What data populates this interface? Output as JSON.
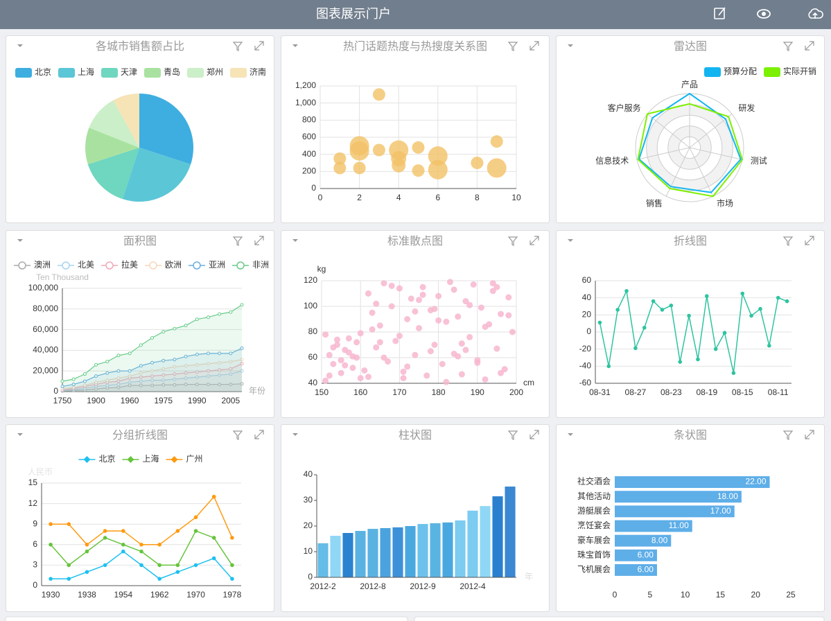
{
  "header": {
    "title": "图表展示门户"
  },
  "chart_data": [
    {
      "type": "pie",
      "title": "各城市销售额占比",
      "legend": "top",
      "categories": [
        "北京",
        "上海",
        "天津",
        "青岛",
        "郑州",
        "济南"
      ],
      "values": [
        30,
        25,
        15,
        11,
        11,
        8
      ],
      "colors": [
        "#3eaee0",
        "#5bc6d6",
        "#6fd6bf",
        "#a9e2a0",
        "#cbefc8",
        "#f6e3b6"
      ]
    },
    {
      "type": "bubble",
      "title": "热门话题热度与热搜度关系图",
      "color": "#f2c266",
      "grid": true,
      "x": [
        1,
        1,
        2,
        2,
        2,
        3,
        3,
        4,
        4,
        4,
        5,
        5,
        6,
        6,
        8,
        9,
        9
      ],
      "values": [
        350,
        240,
        240,
        440,
        500,
        1100,
        450,
        450,
        350,
        270,
        480,
        210,
        380,
        220,
        300,
        550,
        240
      ],
      "sizes": [
        9,
        9,
        9,
        14,
        14,
        9,
        9,
        14,
        11,
        10,
        9,
        9,
        14,
        14,
        9,
        9,
        14
      ],
      "xlim": [
        0,
        10
      ],
      "xticks": [
        0,
        2,
        4,
        6,
        8,
        10
      ],
      "ylim": [
        0,
        1200
      ],
      "yticks": [
        0,
        200,
        400,
        600,
        800,
        {
          "value": 1000,
          "label": "1,000"
        },
        {
          "value": 1200,
          "label": "1,200"
        }
      ]
    },
    {
      "type": "radar",
      "title": "雷达图",
      "legend": "top-right",
      "indicators": [
        "产品",
        "研发",
        "测试",
        "市场",
        "销售",
        "信息技术",
        "客户服务"
      ],
      "rlim": [
        0,
        100
      ],
      "series": [
        {
          "name": "预算分配",
          "color": "#13b5f0",
          "values": [
            100,
            85,
            97,
            92,
            80,
            96,
            88
          ]
        },
        {
          "name": "实际开销",
          "color": "#7cf000",
          "values": [
            81,
            92,
            100,
            100,
            84,
            98,
            100
          ]
        }
      ]
    },
    {
      "type": "area",
      "title": "面积图",
      "legend": "top-left",
      "ylabel": "Ten Thousand",
      "xlabel": "年份",
      "grid": true,
      "categories": [
        "1750",
        null,
        null,
        "1900",
        null,
        null,
        "1960",
        null,
        null,
        "1975",
        null,
        null,
        "1990",
        null,
        null,
        "2005",
        null
      ],
      "series": [
        {
          "name": "澳洲",
          "color": "#aaaaaa",
          "values": [
            500,
            1000,
            1500,
            2500,
            3500,
            4000,
            6000,
            6000,
            6000,
            6500,
            6500,
            7000,
            7000,
            7000,
            7000,
            7000,
            7500
          ]
        },
        {
          "name": "北美",
          "color": "#a6d4f2",
          "values": [
            1000,
            2000,
            3000,
            5000,
            6000,
            7000,
            9000,
            10000,
            11000,
            11000,
            12000,
            13000,
            14000,
            15000,
            16000,
            17000,
            20000
          ]
        },
        {
          "name": "拉美",
          "color": "#f4a6b8",
          "values": [
            1500,
            3000,
            5000,
            7000,
            9000,
            10000,
            13000,
            14000,
            15000,
            16000,
            17000,
            18000,
            19000,
            20000,
            21000,
            22000,
            27000
          ]
        },
        {
          "name": "欧洲",
          "color": "#f7d6bc",
          "values": [
            3000,
            4000,
            6000,
            9000,
            11000,
            13000,
            15000,
            18000,
            20000,
            22000,
            24000,
            25000,
            26000,
            27000,
            28000,
            29000,
            31000
          ]
        },
        {
          "name": "亚洲",
          "color": "#6aaee0",
          "values": [
            5000,
            7000,
            10000,
            15000,
            18000,
            20000,
            20000,
            25000,
            28000,
            30000,
            31000,
            34000,
            36000,
            37000,
            37000,
            37000,
            42000
          ]
        },
        {
          "name": "非洲",
          "color": "#66cc88",
          "values": [
            10000,
            12000,
            17000,
            26000,
            29000,
            35000,
            37000,
            45000,
            52000,
            58000,
            61000,
            64000,
            70000,
            72000,
            75000,
            77000,
            84000
          ]
        }
      ],
      "ylim": [
        0,
        100000
      ],
      "yticks": [
        0,
        {
          "value": 20000,
          "label": "20,000"
        },
        {
          "value": 40000,
          "label": "40,000"
        },
        {
          "value": 60000,
          "label": "60,000"
        },
        {
          "value": 80000,
          "label": "80,000"
        },
        {
          "value": 100000,
          "label": "100,000"
        }
      ]
    },
    {
      "type": "scatter",
      "title": "标准散点图",
      "color": "#f7b6cf",
      "xlabel": "cm",
      "ylabel": "kg",
      "grid": true,
      "x": [
        151,
        152,
        153,
        154,
        155,
        156,
        157,
        158,
        159,
        160,
        151,
        153,
        155,
        157,
        159,
        161,
        152,
        154,
        156,
        158,
        160,
        162,
        163,
        164,
        165,
        166,
        167,
        168,
        169,
        170,
        171,
        172,
        173,
        174,
        175,
        176,
        177,
        178,
        179,
        180,
        181,
        182,
        183,
        184,
        185,
        186,
        187,
        188,
        189,
        190,
        191,
        192,
        193,
        194,
        195,
        196,
        197,
        198,
        199,
        162,
        164,
        166,
        168,
        170,
        172,
        174,
        176,
        178,
        180,
        182,
        184,
        186,
        188,
        190,
        192,
        194,
        196,
        198,
        165,
        175,
        185,
        195,
        163,
        171,
        179,
        187
      ],
      "values": [
        78,
        62,
        55,
        70,
        48,
        66,
        75,
        52,
        60,
        44,
        42,
        68,
        58,
        64,
        72,
        50,
        46,
        74,
        54,
        61,
        79,
        110,
        95,
        68,
        85,
        118,
        57,
        100,
        73,
        114,
        49,
        90,
        106,
        62,
        83,
        115,
        46,
        97,
        70,
        108,
        55,
        88,
        119,
        63,
        92,
        47,
        104,
        76,
        117,
        58,
        99,
        43,
        86,
        112,
        67,
        94,
        51,
        107,
        80,
        45,
        102,
        60,
        116,
        77,
        53,
        96,
        109,
        65,
        89,
        41,
        113,
        71,
        101,
        56,
        84,
        118,
        48,
        93,
        72,
        105,
        61,
        115,
        82,
        44,
        98,
        66
      ],
      "xlim": [
        150,
        200
      ],
      "xticks": [
        150,
        160,
        170,
        180,
        190,
        200
      ],
      "ylim": [
        40,
        120
      ],
      "yticks": [
        40,
        60,
        80,
        100,
        120
      ]
    },
    {
      "type": "line",
      "title": "折线图",
      "color": "#2ec4a0",
      "grid": true,
      "categories": [
        "08-31",
        null,
        null,
        null,
        "08-27",
        null,
        null,
        null,
        "08-23",
        null,
        null,
        null,
        "08-19",
        null,
        null,
        null,
        "08-15",
        null,
        null,
        null,
        "08-11",
        null
      ],
      "values": [
        11,
        -40,
        26,
        48,
        -19,
        5,
        36,
        26,
        31,
        -35,
        19,
        -32,
        42,
        -20,
        -1,
        -48,
        45,
        19,
        27,
        -16,
        40,
        36
      ],
      "ylim": [
        -60,
        60
      ],
      "yticks": [
        -60,
        -40,
        -20,
        0,
        20,
        40,
        60
      ]
    },
    {
      "type": "line",
      "title": "分组折线图",
      "legend": "top",
      "ylabel": "人民币",
      "grid": true,
      "categories": [
        "1930",
        null,
        "1938",
        null,
        "1954",
        null,
        "1962",
        null,
        "1970",
        null,
        "1978"
      ],
      "series": [
        {
          "name": "北京",
          "color": "#1ec0f0",
          "values": [
            1,
            1,
            2,
            3,
            5,
            3,
            1,
            2,
            3,
            4,
            1
          ]
        },
        {
          "name": "上海",
          "color": "#66c43c",
          "values": [
            6,
            3,
            5,
            7,
            6,
            5,
            3,
            3,
            8,
            7,
            3
          ]
        },
        {
          "name": "广州",
          "color": "#ff9a10",
          "values": [
            9,
            9,
            6,
            8,
            8,
            6,
            6,
            8,
            10,
            13,
            7
          ]
        }
      ],
      "ylim": [
        0,
        15
      ],
      "yticks": [
        0,
        3,
        6,
        9,
        12,
        15
      ]
    },
    {
      "type": "bar",
      "title": "柱状图",
      "xlabel": "年",
      "categories": [
        "2012-2",
        null,
        null,
        null,
        "2012-8",
        null,
        null,
        null,
        "2012-9",
        null,
        null,
        null,
        "2012-4",
        null,
        null,
        null
      ],
      "values": [
        13.3,
        16.2,
        17.3,
        18.1,
        18.9,
        19.2,
        19.5,
        20,
        20.8,
        21.1,
        21.4,
        22.2,
        26,
        27.8,
        31.6,
        35.4
      ],
      "colors": [
        "#64bde6",
        "#8fd7f5",
        "#2b82d0",
        "#5ab2e2",
        "#5ab2e2",
        "#4aa3df",
        "#3c91d8",
        "#4aa8e0",
        "#6cc2ec",
        "#5ab4e2",
        "#4aa8e0",
        "#7ccbf0",
        "#7ccbf0",
        "#8fd7f5",
        "#2b7fcf",
        "#3a88d2"
      ],
      "ylim": [
        0,
        40
      ],
      "yticks": [
        0,
        10,
        20,
        30,
        40
      ]
    },
    {
      "type": "hbar",
      "title": "条状图",
      "color": "#5eaee8",
      "categories": [
        "社交酒会",
        "其他活动",
        "游艇展会",
        "烹饪宴会",
        "豪车展会",
        "珠宝首饰",
        "飞机展会"
      ],
      "values": [
        22,
        18,
        17,
        11,
        8,
        6,
        6
      ],
      "value_labels": [
        "22.00",
        "18.00",
        "17.00",
        "11.00",
        "8.00",
        "6.00",
        "6.00"
      ],
      "xlim": [
        0,
        25
      ],
      "xticks": [
        0,
        5,
        10,
        15,
        20,
        25
      ]
    }
  ]
}
